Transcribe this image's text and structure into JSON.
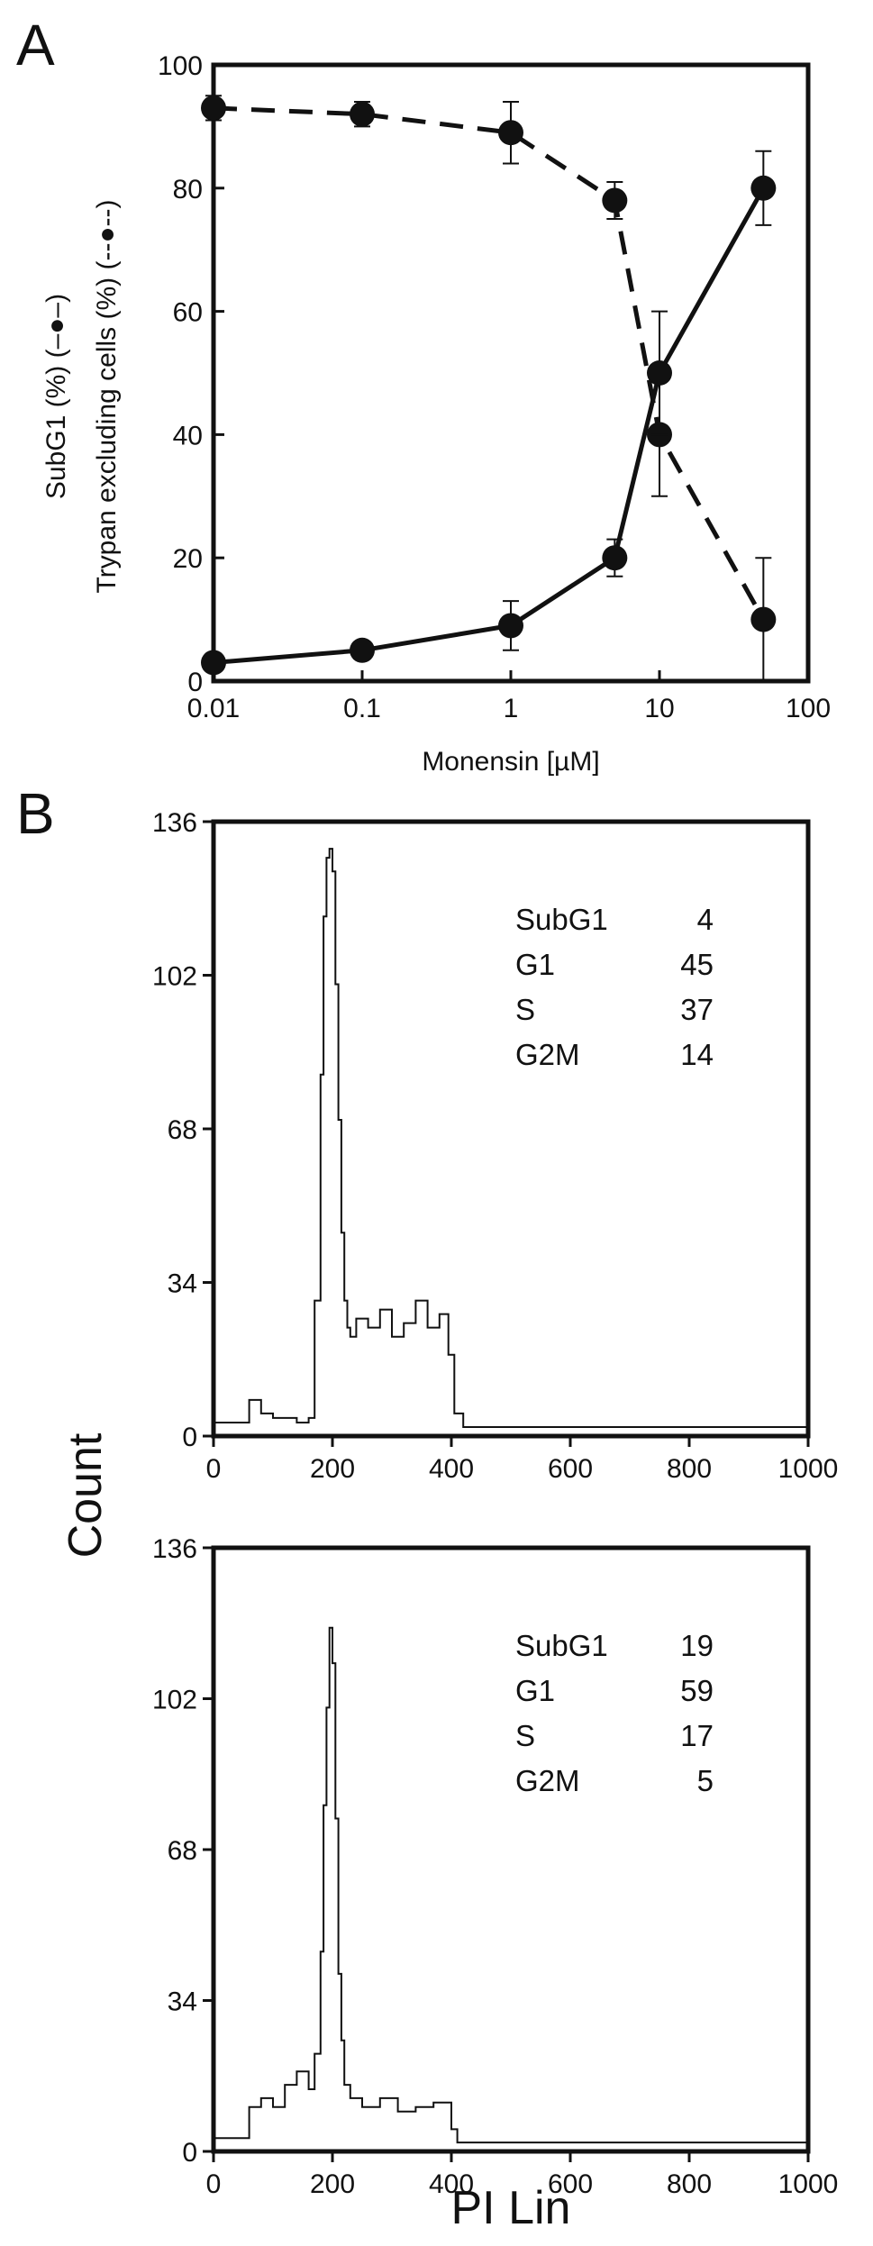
{
  "panels": {
    "a": "A",
    "b": "B"
  },
  "chart_data": [
    {
      "type": "line",
      "xscale": "log",
      "xlim": [
        0.01,
        100
      ],
      "ylim": [
        0,
        100
      ],
      "xticks": [
        "0.01",
        "0.1",
        "1",
        "10",
        "100"
      ],
      "yticks": [
        "0",
        "20",
        "40",
        "60",
        "80",
        "100"
      ],
      "xlabel": "Monensin [µM]",
      "ylabel_top": "Trypan excluding cells (%)  (--●--)",
      "ylabel_bottom": "SubG1 (%)  (–●–)",
      "series": [
        {
          "style": "dashed",
          "x": [
            0.01,
            0.1,
            1,
            5,
            10,
            50
          ],
          "y": [
            93,
            92,
            89,
            78,
            40,
            10
          ],
          "err": [
            2,
            2,
            5,
            3,
            10,
            10
          ]
        },
        {
          "style": "solid",
          "x": [
            0.01,
            0.1,
            1,
            5,
            10,
            50
          ],
          "y": [
            3,
            5,
            9,
            20,
            50,
            80
          ],
          "err": [
            1,
            1,
            4,
            3,
            10,
            6
          ]
        }
      ]
    },
    {
      "type": "histogram",
      "xlim": [
        0,
        1000
      ],
      "ylim": [
        0,
        136
      ],
      "xticks": [
        "0",
        "200",
        "400",
        "600",
        "800",
        "1000"
      ],
      "yticks": [
        "0",
        "34",
        "68",
        "102",
        "136"
      ],
      "stats": [
        {
          "label": "SubG1",
          "value": "4"
        },
        {
          "label": "G1",
          "value": "45"
        },
        {
          "label": "S",
          "value": "37"
        },
        {
          "label": "G2M",
          "value": "14"
        }
      ],
      "bins_x": [
        0,
        40,
        60,
        80,
        100,
        140,
        160,
        170,
        180,
        185,
        190,
        195,
        200,
        205,
        210,
        215,
        220,
        225,
        230,
        240,
        260,
        280,
        300,
        320,
        340,
        360,
        380,
        395,
        405,
        420,
        1000
      ],
      "bins_y": [
        3,
        3,
        8,
        5,
        4,
        3,
        4,
        30,
        80,
        115,
        128,
        130,
        125,
        100,
        70,
        45,
        30,
        24,
        22,
        26,
        24,
        28,
        22,
        25,
        30,
        24,
        27,
        18,
        5,
        2,
        2
      ]
    },
    {
      "type": "histogram",
      "xlim": [
        0,
        1000
      ],
      "ylim": [
        0,
        136
      ],
      "xticks": [
        "0",
        "200",
        "400",
        "600",
        "800",
        "1000"
      ],
      "yticks": [
        "0",
        "34",
        "68",
        "102",
        "136"
      ],
      "stats": [
        {
          "label": "SubG1",
          "value": "19"
        },
        {
          "label": "G1",
          "value": "59"
        },
        {
          "label": "S",
          "value": "17"
        },
        {
          "label": "G2M",
          "value": "5"
        }
      ],
      "bins_x": [
        0,
        50,
        60,
        80,
        100,
        120,
        140,
        160,
        170,
        180,
        185,
        190,
        195,
        200,
        205,
        210,
        215,
        220,
        230,
        250,
        280,
        310,
        340,
        370,
        400,
        410,
        430,
        1000
      ],
      "bins_y": [
        3,
        3,
        10,
        12,
        10,
        15,
        18,
        14,
        22,
        45,
        78,
        100,
        118,
        110,
        75,
        40,
        25,
        15,
        12,
        10,
        12,
        9,
        10,
        11,
        5,
        2,
        2,
        2
      ]
    }
  ],
  "shared": {
    "ylabel": "Count",
    "xlabel": "PI Lin"
  }
}
